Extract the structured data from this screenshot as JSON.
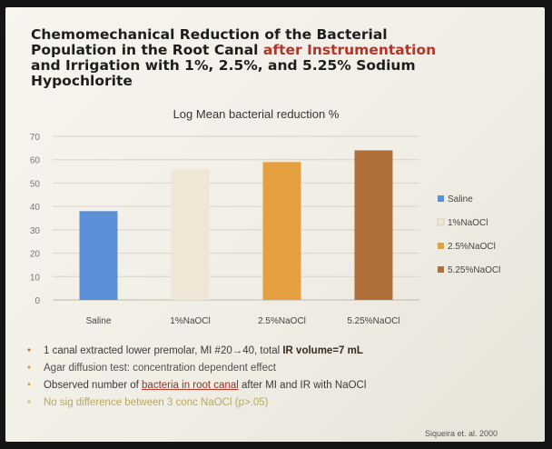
{
  "title_lines": [
    "Chemomechanical Reduction of the Bacterial",
    "Population in the Root Canal",
    "after Instrumentation",
    "and Irrigation with 1%, 2.5%, and 5.25% Sodium",
    "Hypochlorite"
  ],
  "chart_data": {
    "type": "bar",
    "title": "Log Mean bacterial reduction %",
    "categories": [
      "Saline",
      "1%NaOCl",
      "2.5%NaOCl",
      "5.25%NaOCl"
    ],
    "series": [
      {
        "name": "Saline",
        "color": "#5b8fd6",
        "values": [
          38,
          null,
          null,
          null
        ]
      },
      {
        "name": "1%NaOCl",
        "color": "#f0e6d6",
        "values": [
          null,
          56,
          null,
          null
        ]
      },
      {
        "name": "2.5%NaOCl",
        "color": "#e4a040",
        "values": [
          null,
          null,
          59,
          null
        ]
      },
      {
        "name": "5.25%NaOCl",
        "color": "#b06e38",
        "values": [
          null,
          null,
          null,
          64
        ]
      }
    ],
    "ylim": [
      0,
      70
    ],
    "yticks": [
      0,
      10,
      20,
      30,
      40,
      50,
      60,
      70
    ],
    "grid": true,
    "legend": "right"
  },
  "bullets": {
    "b1_pre": "1 canal extracted lower premolar, MI #20→40, total ",
    "b1_bold": "IR volume=7 mL",
    "b2": "Agar diffusion test: concentration dependent effect",
    "b3_pre": "Observed number of ",
    "b3_u": "bacteria in root canal",
    "b3_post": " after MI and IR with NaOCl",
    "b4": "No sig difference between 3 conc NaOCl (p>.05)"
  },
  "citation": "Siqueira et. al. 2000"
}
